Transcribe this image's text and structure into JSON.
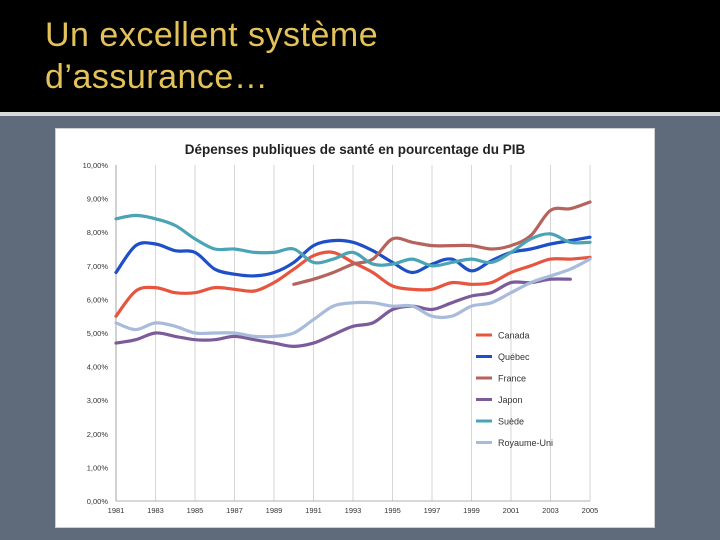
{
  "slide": {
    "title_line1": "Un excellent système",
    "title_line2": "d’assurance…",
    "title_color": "#e3c25a",
    "background_color": "#5f6a7a"
  },
  "chart_data": {
    "type": "line",
    "title": "Dépenses publiques de santé en pourcentage du PIB",
    "xlabel": "",
    "ylabel": "",
    "xlim": [
      1981,
      2005
    ],
    "ylim": [
      0,
      10
    ],
    "x_ticks": [
      1981,
      1983,
      1985,
      1987,
      1989,
      1991,
      1993,
      1995,
      1997,
      1999,
      2001,
      2003,
      2005
    ],
    "y_ticks": [
      {
        "value": 0,
        "label": "0,00%"
      },
      {
        "value": 1,
        "label": "1,00%"
      },
      {
        "value": 2,
        "label": "2,00%"
      },
      {
        "value": 3,
        "label": "3,00%"
      },
      {
        "value": 4,
        "label": "4,00%"
      },
      {
        "value": 5,
        "label": "5,00%"
      },
      {
        "value": 6,
        "label": "6,00%"
      },
      {
        "value": 7,
        "label": "7,00%"
      },
      {
        "value": 8,
        "label": "8,00%"
      },
      {
        "value": 9,
        "label": "9,00%"
      },
      {
        "value": 10,
        "label": "10,00%"
      }
    ],
    "grid": "vertical",
    "legend_position": "bottom-right",
    "series": [
      {
        "name": "Canada",
        "color": "#e8553f",
        "x": [
          1981,
          1982,
          1983,
          1984,
          1985,
          1986,
          1987,
          1988,
          1989,
          1990,
          1991,
          1992,
          1993,
          1994,
          1995,
          1996,
          1997,
          1998,
          1999,
          2000,
          2001,
          2002,
          2003,
          2004,
          2005
        ],
        "y": [
          5.5,
          6.25,
          6.35,
          6.2,
          6.2,
          6.35,
          6.3,
          6.25,
          6.5,
          6.9,
          7.3,
          7.4,
          7.1,
          6.8,
          6.4,
          6.3,
          6.3,
          6.5,
          6.45,
          6.5,
          6.8,
          7.0,
          7.2,
          7.2,
          7.25
        ]
      },
      {
        "name": "Québec",
        "color": "#1f4fc7",
        "x": [
          1981,
          1982,
          1983,
          1984,
          1985,
          1986,
          1987,
          1988,
          1989,
          1990,
          1991,
          1992,
          1993,
          1994,
          1995,
          1996,
          1997,
          1998,
          1999,
          2000,
          2001,
          2002,
          2003,
          2004,
          2005
        ],
        "y": [
          6.8,
          7.6,
          7.65,
          7.45,
          7.4,
          6.9,
          6.75,
          6.7,
          6.8,
          7.1,
          7.6,
          7.75,
          7.7,
          7.45,
          7.1,
          6.8,
          7.05,
          7.2,
          6.85,
          7.15,
          7.4,
          7.5,
          7.65,
          7.75,
          7.85
        ]
      },
      {
        "name": "France",
        "color": "#b5635c",
        "x": [
          1990,
          1991,
          1992,
          1993,
          1994,
          1995,
          1996,
          1997,
          1998,
          1999,
          2000,
          2001,
          2002,
          2003,
          2004,
          2005
        ],
        "y": [
          6.45,
          6.6,
          6.8,
          7.05,
          7.2,
          7.8,
          7.7,
          7.6,
          7.6,
          7.6,
          7.5,
          7.6,
          7.9,
          8.65,
          8.7,
          8.9
        ]
      },
      {
        "name": "Japon",
        "color": "#7b5b9a",
        "x": [
          1981,
          1982,
          1983,
          1984,
          1985,
          1986,
          1987,
          1988,
          1989,
          1990,
          1991,
          1992,
          1993,
          1994,
          1995,
          1996,
          1997,
          1998,
          1999,
          2000,
          2001,
          2002,
          2003,
          2004
        ],
        "y": [
          4.7,
          4.8,
          5.0,
          4.9,
          4.8,
          4.8,
          4.9,
          4.8,
          4.7,
          4.6,
          4.7,
          4.95,
          5.2,
          5.3,
          5.7,
          5.8,
          5.7,
          5.9,
          6.1,
          6.2,
          6.5,
          6.5,
          6.6,
          6.6
        ]
      },
      {
        "name": "Suède",
        "color": "#4ba3b6",
        "x": [
          1981,
          1982,
          1983,
          1984,
          1985,
          1986,
          1987,
          1988,
          1989,
          1990,
          1991,
          1992,
          1993,
          1994,
          1995,
          1996,
          1997,
          1998,
          1999,
          2000,
          2001,
          2002,
          2003,
          2004,
          2005
        ],
        "y": [
          8.4,
          8.5,
          8.4,
          8.2,
          7.8,
          7.5,
          7.5,
          7.4,
          7.4,
          7.5,
          7.1,
          7.2,
          7.4,
          7.05,
          7.05,
          7.2,
          7.0,
          7.1,
          7.2,
          7.1,
          7.4,
          7.8,
          7.95,
          7.7,
          7.7
        ]
      },
      {
        "name": "Royaume-Uni",
        "color": "#a9bbdc",
        "x": [
          1981,
          1982,
          1983,
          1984,
          1985,
          1986,
          1987,
          1988,
          1989,
          1990,
          1991,
          1992,
          1993,
          1994,
          1995,
          1996,
          1997,
          1998,
          1999,
          2000,
          2001,
          2002,
          2003,
          2004,
          2005
        ],
        "y": [
          5.3,
          5.1,
          5.3,
          5.2,
          5.0,
          5.0,
          5.0,
          4.9,
          4.9,
          5.0,
          5.4,
          5.8,
          5.9,
          5.9,
          5.8,
          5.8,
          5.5,
          5.5,
          5.8,
          5.9,
          6.2,
          6.5,
          6.7,
          6.9,
          7.2
        ]
      }
    ]
  }
}
